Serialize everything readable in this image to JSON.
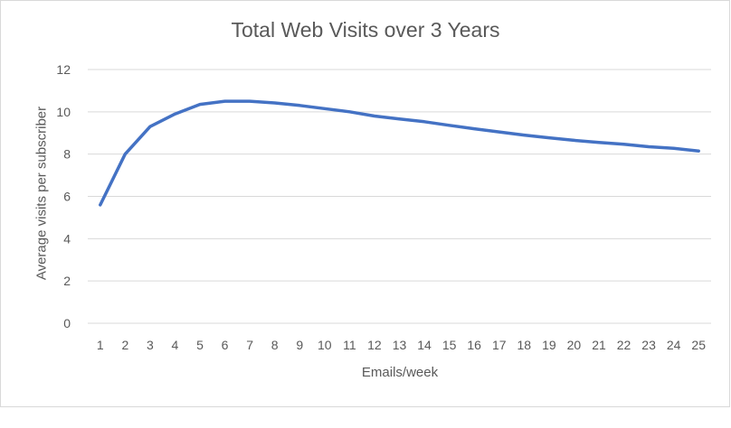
{
  "chart_data": {
    "type": "line",
    "title": "Total Web Visits over 3 Years",
    "xlabel": "Emails/week",
    "ylabel": "Average visits per subscriber",
    "categories": [
      1,
      2,
      3,
      4,
      5,
      6,
      7,
      8,
      9,
      10,
      11,
      12,
      13,
      14,
      15,
      16,
      17,
      18,
      19,
      20,
      21,
      22,
      23,
      24,
      25
    ],
    "series": [
      {
        "name": "Average visits per subscriber",
        "color": "#4472C4",
        "values": [
          5.6,
          8.0,
          9.3,
          9.9,
          10.35,
          10.5,
          10.5,
          10.42,
          10.3,
          10.15,
          10.0,
          9.8,
          9.66,
          9.53,
          9.36,
          9.2,
          9.05,
          8.9,
          8.77,
          8.65,
          8.55,
          8.47,
          8.35,
          8.27,
          8.15
        ]
      }
    ],
    "ylim": [
      0,
      12
    ],
    "yticks": [
      0,
      2,
      4,
      6,
      8,
      10,
      12
    ],
    "grid": true,
    "legend": "none"
  },
  "colors": {
    "line": "#4472C4",
    "grid": "#d9d9d9",
    "text": "#595959",
    "frame": "#d9d9d9"
  }
}
